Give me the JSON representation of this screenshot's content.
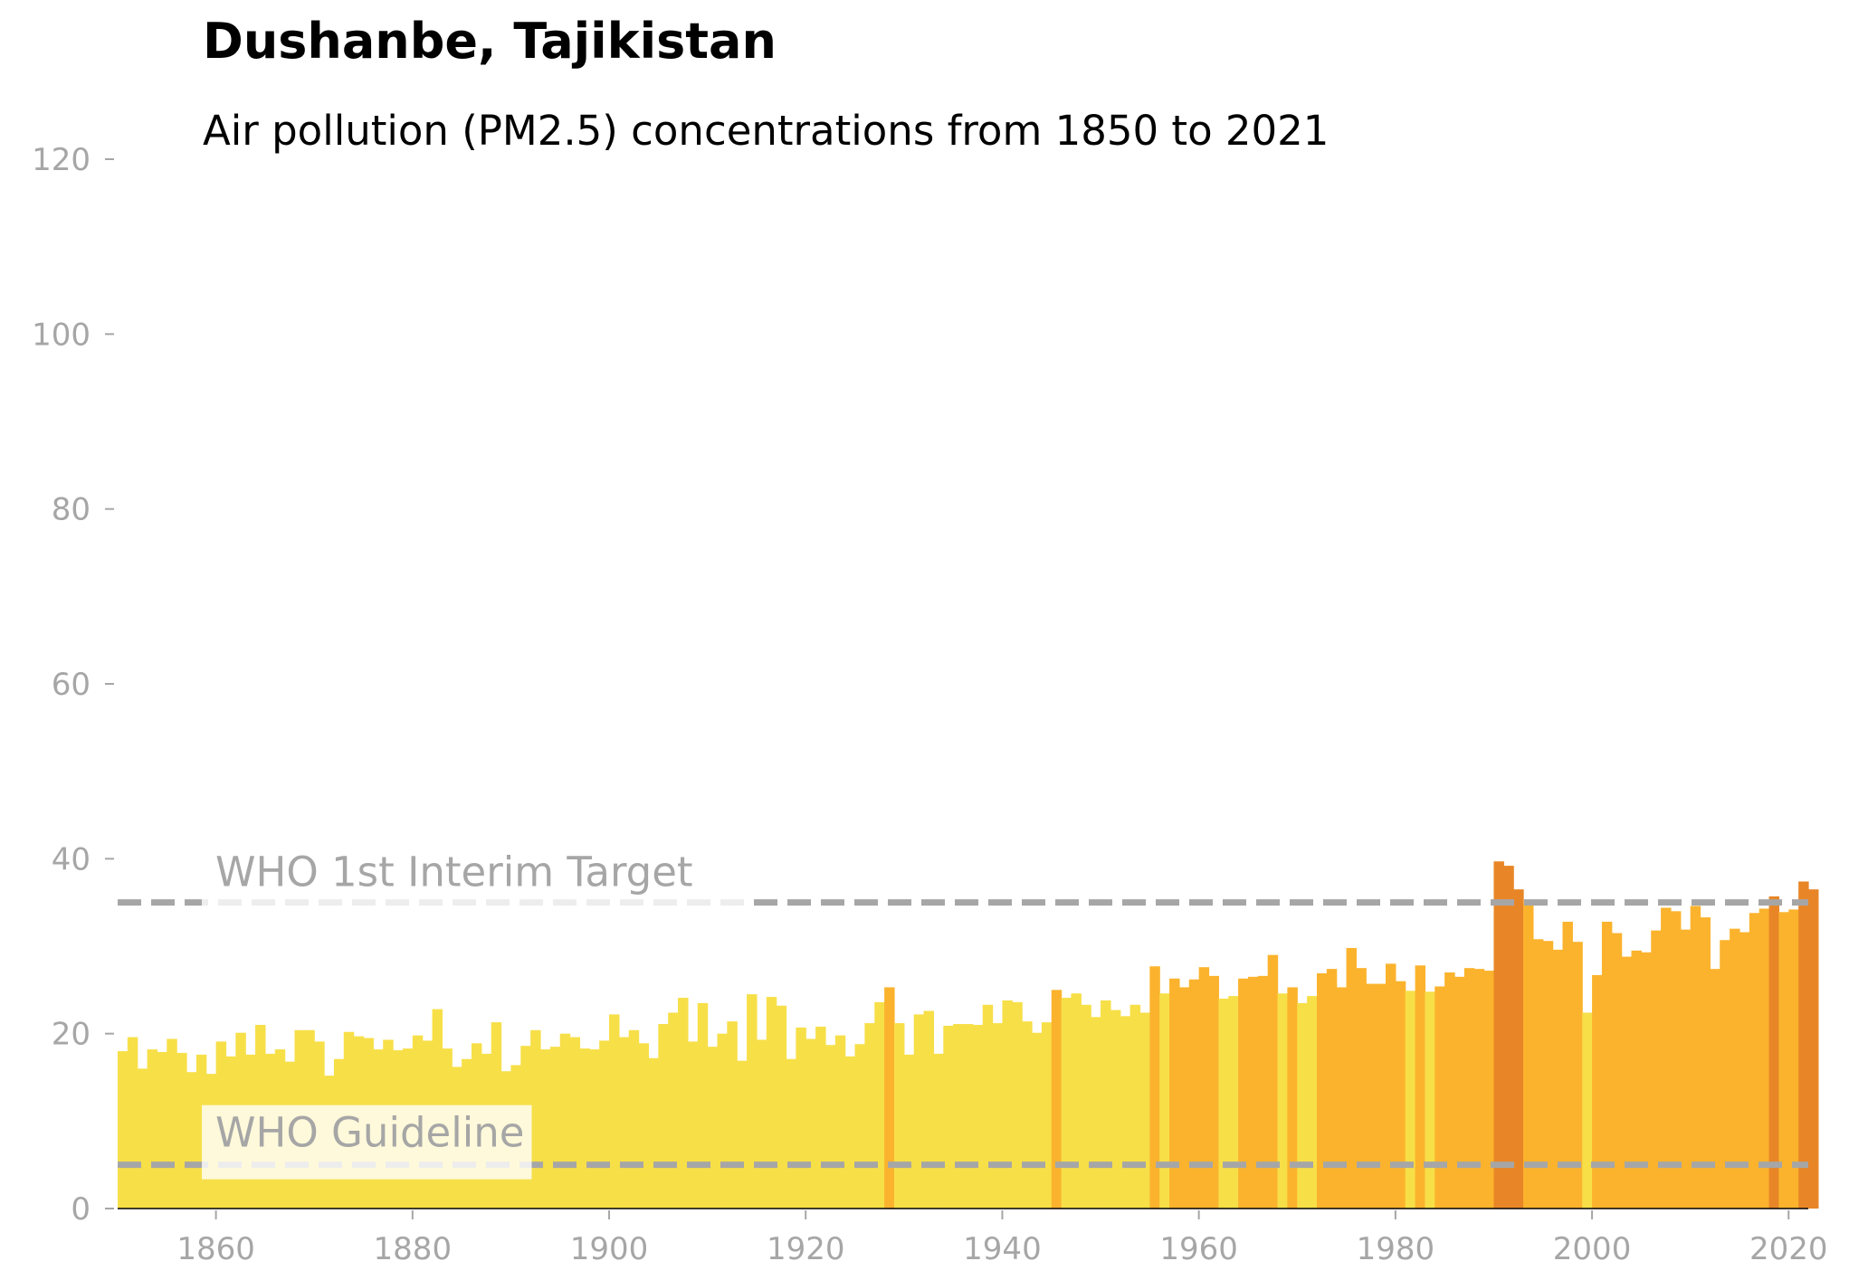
{
  "chart_data": {
    "type": "bar",
    "title": "Dushanbe, Tajikistan",
    "subtitle": "Air pollution (PM2.5) concentrations from 1850 to 2021",
    "xlabel": "",
    "ylabel": "",
    "xlim": [
      1850,
      2022
    ],
    "ylim": [
      0,
      120
    ],
    "x_ticks": [
      1860,
      1880,
      1900,
      1920,
      1940,
      1960,
      1980,
      2000,
      2020
    ],
    "y_ticks": [
      0,
      20,
      40,
      60,
      80,
      100,
      120
    ],
    "start_year": 1850,
    "values": [
      18.0,
      19.6,
      16.0,
      18.2,
      17.9,
      19.4,
      17.8,
      15.6,
      17.6,
      15.4,
      19.1,
      17.4,
      20.1,
      17.6,
      21.0,
      17.7,
      18.2,
      16.8,
      20.4,
      20.4,
      19.1,
      15.2,
      17.1,
      20.2,
      19.7,
      19.5,
      18.2,
      19.3,
      18.1,
      18.3,
      19.8,
      19.2,
      22.8,
      18.3,
      16.2,
      17.1,
      18.9,
      17.7,
      21.3,
      15.7,
      16.4,
      18.6,
      20.4,
      18.2,
      18.5,
      20.0,
      19.6,
      18.3,
      18.2,
      19.2,
      22.2,
      19.6,
      20.4,
      18.9,
      17.2,
      21.1,
      22.4,
      24.1,
      19.1,
      23.5,
      18.5,
      20.0,
      21.4,
      16.9,
      24.5,
      19.3,
      24.2,
      23.2,
      17.1,
      20.7,
      19.4,
      20.8,
      18.7,
      19.8,
      17.4,
      18.8,
      21.2,
      23.6,
      25.3,
      21.2,
      17.6,
      22.2,
      22.6,
      17.7,
      20.9,
      21.1,
      21.1,
      21.0,
      23.3,
      21.2,
      23.8,
      23.6,
      21.4,
      20.1,
      21.3,
      25.0,
      24.1,
      24.6,
      23.3,
      21.9,
      23.8,
      22.7,
      22.0,
      23.3,
      22.4,
      27.7,
      24.6,
      26.3,
      25.3,
      26.2,
      27.6,
      26.6,
      24.0,
      24.3,
      26.3,
      26.5,
      26.6,
      29.0,
      24.6,
      25.3,
      23.5,
      24.3,
      26.9,
      27.4,
      25.3,
      29.8,
      27.5,
      25.7,
      25.7,
      28.0,
      26.0,
      24.9,
      27.8,
      24.8,
      25.4,
      27.0,
      26.5,
      27.5,
      27.4,
      27.2,
      39.7,
      39.2,
      36.5,
      34.9,
      30.8,
      30.6,
      29.6,
      32.8,
      30.5,
      22.4,
      26.7,
      32.8,
      31.5,
      28.8,
      29.5,
      29.3,
      31.8,
      34.4,
      34.0,
      31.9,
      34.6,
      33.3,
      27.4,
      30.7,
      32.0,
      31.6,
      33.8,
      34.3,
      35.7,
      33.9,
      34.2,
      37.4,
      36.5
    ],
    "categories_colors": {
      "low": "#f7df48",
      "mid": "#fbb32d",
      "high": "#e88627"
    },
    "reference_lines": [
      {
        "name": "WHO 1st Interim Target",
        "value": 35
      },
      {
        "name": "WHO Guideline",
        "value": 5
      }
    ],
    "grid": false
  }
}
